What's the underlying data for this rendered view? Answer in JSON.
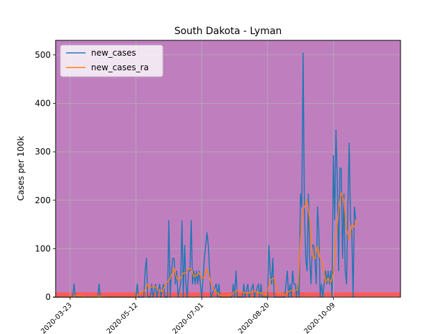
{
  "chart_data": {
    "type": "line",
    "title": "South Dakota - Lyman",
    "xlabel": "",
    "ylabel": "Cases per 100k",
    "x_start": "2020-03-10",
    "x_end": "2020-11-29",
    "xlim": [
      "2020-03-12",
      "2020-11-29"
    ],
    "ylim": [
      0,
      530
    ],
    "x_ticks": [
      "2020-03-23",
      "2020-05-12",
      "2020-07-01",
      "2020-08-20",
      "2020-10-09"
    ],
    "y_ticks": [
      0,
      100,
      200,
      300,
      400,
      500
    ],
    "grid": true,
    "legend_position": "top-left",
    "background_bands": [
      {
        "from": 0,
        "to": 1,
        "color": "#d0d040"
      },
      {
        "from": 1,
        "to": 10,
        "color": "#fb5a5a"
      },
      {
        "from": 10,
        "to": 530,
        "color": "#bf7fbf"
      }
    ],
    "series": [
      {
        "name": "new_cases",
        "color": "#1f77b4",
        "points": [
          [
            "2020-03-10",
            0
          ],
          [
            "2020-03-25",
            0
          ],
          [
            "2020-03-26",
            27
          ],
          [
            "2020-03-27",
            0
          ],
          [
            "2020-04-13",
            0
          ],
          [
            "2020-04-14",
            27
          ],
          [
            "2020-04-15",
            0
          ],
          [
            "2020-05-12",
            0
          ],
          [
            "2020-05-13",
            27
          ],
          [
            "2020-05-14",
            0
          ],
          [
            "2020-05-18",
            0
          ],
          [
            "2020-05-19",
            54
          ],
          [
            "2020-05-20",
            80
          ],
          [
            "2020-05-21",
            0
          ],
          [
            "2020-05-23",
            0
          ],
          [
            "2020-05-24",
            27
          ],
          [
            "2020-05-25",
            0
          ],
          [
            "2020-05-27",
            27
          ],
          [
            "2020-05-28",
            0
          ],
          [
            "2020-05-30",
            27
          ],
          [
            "2020-05-31",
            0
          ],
          [
            "2020-06-02",
            27
          ],
          [
            "2020-06-03",
            0
          ],
          [
            "2020-06-05",
            0
          ],
          [
            "2020-06-06",
            158
          ],
          [
            "2020-06-07",
            0
          ],
          [
            "2020-06-08",
            54
          ],
          [
            "2020-06-09",
            80
          ],
          [
            "2020-06-10",
            80
          ],
          [
            "2020-06-11",
            27
          ],
          [
            "2020-06-12",
            54
          ],
          [
            "2020-06-13",
            0
          ],
          [
            "2020-06-15",
            27
          ],
          [
            "2020-06-16",
            158
          ],
          [
            "2020-06-17",
            0
          ],
          [
            "2020-06-18",
            107
          ],
          [
            "2020-06-19",
            27
          ],
          [
            "2020-06-20",
            0
          ],
          [
            "2020-06-21",
            54
          ],
          [
            "2020-06-22",
            54
          ],
          [
            "2020-06-23",
            158
          ],
          [
            "2020-06-24",
            27
          ],
          [
            "2020-06-25",
            54
          ],
          [
            "2020-06-26",
            27
          ],
          [
            "2020-06-27",
            54
          ],
          [
            "2020-06-28",
            27
          ],
          [
            "2020-06-29",
            54
          ],
          [
            "2020-06-30",
            27
          ],
          [
            "2020-07-01",
            0
          ],
          [
            "2020-07-03",
            80
          ],
          [
            "2020-07-05",
            133
          ],
          [
            "2020-07-06",
            107
          ],
          [
            "2020-07-07",
            54
          ],
          [
            "2020-07-08",
            0
          ],
          [
            "2020-07-12",
            27
          ],
          [
            "2020-07-13",
            0
          ],
          [
            "2020-07-14",
            27
          ],
          [
            "2020-07-15",
            0
          ],
          [
            "2020-07-24",
            0
          ],
          [
            "2020-07-25",
            27
          ],
          [
            "2020-07-26",
            0
          ],
          [
            "2020-07-27",
            54
          ],
          [
            "2020-07-28",
            0
          ],
          [
            "2020-08-01",
            0
          ],
          [
            "2020-08-02",
            27
          ],
          [
            "2020-08-03",
            0
          ],
          [
            "2020-08-05",
            27
          ],
          [
            "2020-08-06",
            0
          ],
          [
            "2020-08-09",
            27
          ],
          [
            "2020-08-10",
            0
          ],
          [
            "2020-08-13",
            27
          ],
          [
            "2020-08-14",
            0
          ],
          [
            "2020-08-15",
            27
          ],
          [
            "2020-08-16",
            0
          ],
          [
            "2020-08-20",
            0
          ],
          [
            "2020-08-21",
            107
          ],
          [
            "2020-08-22",
            54
          ],
          [
            "2020-08-23",
            27
          ],
          [
            "2020-08-24",
            80
          ],
          [
            "2020-08-25",
            0
          ],
          [
            "2020-09-02",
            0
          ],
          [
            "2020-09-03",
            27
          ],
          [
            "2020-09-04",
            54
          ],
          [
            "2020-09-05",
            0
          ],
          [
            "2020-09-06",
            27
          ],
          [
            "2020-09-07",
            0
          ],
          [
            "2020-09-08",
            54
          ],
          [
            "2020-09-09",
            27
          ],
          [
            "2020-09-10",
            27
          ],
          [
            "2020-09-11",
            0
          ],
          [
            "2020-09-12",
            27
          ],
          [
            "2020-09-13",
            0
          ],
          [
            "2020-09-14",
            213
          ],
          [
            "2020-09-15",
            186
          ],
          [
            "2020-09-16",
            504
          ],
          [
            "2020-09-17",
            186
          ],
          [
            "2020-09-18",
            80
          ],
          [
            "2020-09-19",
            54
          ],
          [
            "2020-09-20",
            213
          ],
          [
            "2020-09-21",
            80
          ],
          [
            "2020-09-22",
            27
          ],
          [
            "2020-09-23",
            107
          ],
          [
            "2020-09-24",
            107
          ],
          [
            "2020-09-25",
            80
          ],
          [
            "2020-09-26",
            27
          ],
          [
            "2020-09-27",
            186
          ],
          [
            "2020-09-28",
            133
          ],
          [
            "2020-09-29",
            0
          ],
          [
            "2020-09-30",
            27
          ],
          [
            "2020-10-01",
            0
          ],
          [
            "2020-10-02",
            27
          ],
          [
            "2020-10-03",
            54
          ],
          [
            "2020-10-04",
            27
          ],
          [
            "2020-10-05",
            54
          ],
          [
            "2020-10-06",
            27
          ],
          [
            "2020-10-07",
            54
          ],
          [
            "2020-10-08",
            0
          ],
          [
            "2020-10-09",
            292
          ],
          [
            "2020-10-10",
            160
          ],
          [
            "2020-10-11",
            345
          ],
          [
            "2020-10-12",
            240
          ],
          [
            "2020-10-13",
            54
          ],
          [
            "2020-10-14",
            266
          ],
          [
            "2020-10-15",
            266
          ],
          [
            "2020-10-16",
            80
          ],
          [
            "2020-10-17",
            213
          ],
          [
            "2020-10-18",
            54
          ],
          [
            "2020-10-19",
            27
          ],
          [
            "2020-10-20",
            186
          ],
          [
            "2020-10-21",
            318
          ],
          [
            "2020-10-22",
            160
          ],
          [
            "2020-10-23",
            133
          ],
          [
            "2020-10-24",
            0
          ],
          [
            "2020-10-25",
            186
          ],
          [
            "2020-10-26",
            160
          ]
        ]
      },
      {
        "name": "new_cases_ra",
        "color": "#ff7f0e",
        "points": [
          [
            "2020-03-10",
            0
          ],
          [
            "2020-03-25",
            0
          ],
          [
            "2020-03-28",
            4
          ],
          [
            "2020-04-01",
            2
          ],
          [
            "2020-04-05",
            0
          ],
          [
            "2020-04-14",
            2
          ],
          [
            "2020-04-20",
            0
          ],
          [
            "2020-05-12",
            0
          ],
          [
            "2020-05-15",
            8
          ],
          [
            "2020-05-19",
            15
          ],
          [
            "2020-05-21",
            27
          ],
          [
            "2020-05-23",
            20
          ],
          [
            "2020-05-26",
            23
          ],
          [
            "2020-05-29",
            15
          ],
          [
            "2020-06-01",
            12
          ],
          [
            "2020-06-04",
            28
          ],
          [
            "2020-06-07",
            38
          ],
          [
            "2020-06-10",
            60
          ],
          [
            "2020-06-12",
            38
          ],
          [
            "2020-06-14",
            35
          ],
          [
            "2020-06-17",
            50
          ],
          [
            "2020-06-19",
            50
          ],
          [
            "2020-06-21",
            60
          ],
          [
            "2020-06-23",
            58
          ],
          [
            "2020-06-25",
            42
          ],
          [
            "2020-06-27",
            45
          ],
          [
            "2020-06-29",
            50
          ],
          [
            "2020-07-01",
            38
          ],
          [
            "2020-07-03",
            42
          ],
          [
            "2020-07-05",
            58
          ],
          [
            "2020-07-07",
            40
          ],
          [
            "2020-07-09",
            20
          ],
          [
            "2020-07-12",
            10
          ],
          [
            "2020-07-15",
            4
          ],
          [
            "2020-07-20",
            0
          ],
          [
            "2020-07-25",
            8
          ],
          [
            "2020-07-28",
            15
          ],
          [
            "2020-08-01",
            10
          ],
          [
            "2020-08-05",
            8
          ],
          [
            "2020-08-10",
            12
          ],
          [
            "2020-08-15",
            8
          ],
          [
            "2020-08-19",
            5
          ],
          [
            "2020-08-22",
            35
          ],
          [
            "2020-08-25",
            40
          ],
          [
            "2020-08-28",
            8
          ],
          [
            "2020-09-02",
            4
          ],
          [
            "2020-09-05",
            12
          ],
          [
            "2020-09-09",
            15
          ],
          [
            "2020-09-12",
            14
          ],
          [
            "2020-09-14",
            120
          ],
          [
            "2020-09-16",
            180
          ],
          [
            "2020-09-19",
            200
          ],
          [
            "2020-09-21",
            160
          ],
          [
            "2020-09-23",
            85
          ],
          [
            "2020-09-25",
            80
          ],
          [
            "2020-09-27",
            105
          ],
          [
            "2020-09-29",
            80
          ],
          [
            "2020-10-01",
            70
          ],
          [
            "2020-10-03",
            30
          ],
          [
            "2020-10-05",
            40
          ],
          [
            "2020-10-07",
            30
          ],
          [
            "2020-10-09",
            50
          ],
          [
            "2020-10-11",
            130
          ],
          [
            "2020-10-13",
            180
          ],
          [
            "2020-10-15",
            215
          ],
          [
            "2020-10-17",
            200
          ],
          [
            "2020-10-19",
            140
          ],
          [
            "2020-10-21",
            120
          ],
          [
            "2020-10-23",
            150
          ],
          [
            "2020-10-25",
            145
          ],
          [
            "2020-10-27",
            160
          ]
        ]
      }
    ]
  }
}
